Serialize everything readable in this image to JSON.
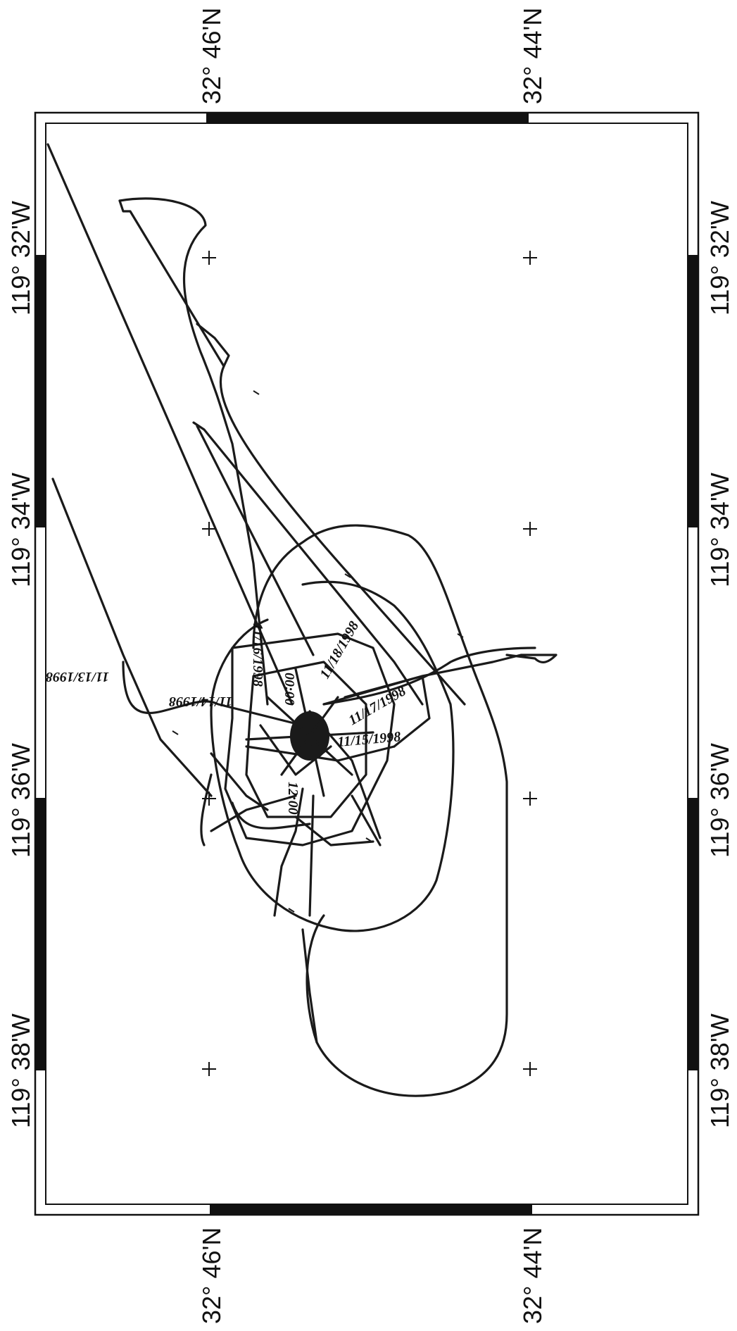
{
  "map": {
    "frame_color": "#111111",
    "track_color": "#1a1a1a",
    "labels": {
      "lat_46_top": "32° 46'N",
      "lat_44_top": "32° 44'N",
      "lat_46_bottom": "32° 46'N",
      "lat_44_bottom": "32° 44'N",
      "lon_32_left": "119° 32'W",
      "lon_34_left": "119° 34'W",
      "lon_36_left": "119° 36'W",
      "lon_38_left": "119° 38'W",
      "lon_32_right": "119° 32'W",
      "lon_34_right": "119° 34'W",
      "lon_36_right": "119° 36'W",
      "lon_38_right": "119° 38'W"
    },
    "track_labels": {
      "date_far": "11/13/1998",
      "date_a": "11/14/1998",
      "date_b": "11/15/1998",
      "date_c": "11/16/1998",
      "date_d": "11/17/1998",
      "date_e": "11/18/1998",
      "time_a": "12:00",
      "time_b": "00:00"
    }
  }
}
